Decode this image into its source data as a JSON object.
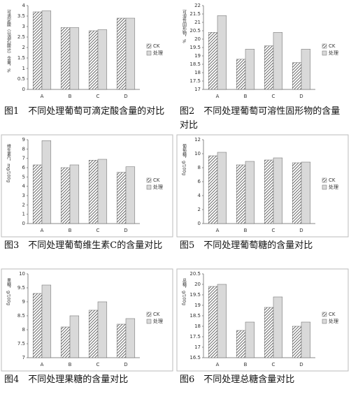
{
  "chart_data": [
    {
      "type": "bar",
      "caption": "图1　不同处理葡萄可滴定酸含量的对比",
      "y_label": "可滴定酸（以酒石酸计）含量，%",
      "categories": [
        "A",
        "B",
        "C",
        "D"
      ],
      "series": [
        {
          "name": "CK",
          "color": "#444444",
          "hatch": true,
          "values": [
            3.7,
            2.95,
            2.8,
            3.4
          ]
        },
        {
          "name": "处理",
          "color": "#d9d9d9",
          "hatch": false,
          "values": [
            3.75,
            2.95,
            2.85,
            3.4
          ]
        }
      ],
      "ylim": [
        0,
        4
      ],
      "yticks": [
        0,
        0.5,
        1,
        1.5,
        2,
        2.5,
        3,
        3.5,
        4
      ]
    },
    {
      "type": "bar",
      "caption": "图2　不同处理葡萄可溶性固形物的含量对比",
      "y_label": "可溶性固形物，%",
      "categories": [
        "A",
        "B",
        "C",
        "D"
      ],
      "series": [
        {
          "name": "CK",
          "color": "#444444",
          "hatch": true,
          "values": [
            20.4,
            18.8,
            19.6,
            18.6
          ]
        },
        {
          "name": "处理",
          "color": "#d9d9d9",
          "hatch": false,
          "values": [
            21.4,
            19.4,
            20.4,
            19.4
          ]
        }
      ],
      "ylim": [
        17,
        22
      ],
      "yticks": [
        17,
        17.5,
        18,
        18.5,
        19,
        19.5,
        20,
        20.5,
        21,
        21.5,
        22
      ]
    },
    {
      "type": "bar",
      "caption": "图3　不同处理葡萄维生素C的含量对比",
      "y_label": "维生素C，mg/100g",
      "categories": [
        "A",
        "B",
        "C",
        "D"
      ],
      "series": [
        {
          "name": "CK",
          "color": "#444444",
          "hatch": true,
          "values": [
            6.3,
            6.0,
            6.8,
            5.5
          ]
        },
        {
          "name": "处理",
          "color": "#d9d9d9",
          "hatch": false,
          "values": [
            8.9,
            6.3,
            6.9,
            6.1
          ]
        }
      ],
      "ylim": [
        0,
        9
      ],
      "yticks": [
        0,
        1,
        2,
        3,
        4,
        5,
        6,
        7,
        8,
        9
      ]
    },
    {
      "type": "bar",
      "caption": "图5　不同处理葡萄糖的含量对比",
      "y_label": "葡萄糖，g/100g",
      "categories": [
        "A",
        "B",
        "C",
        "D"
      ],
      "series": [
        {
          "name": "CK",
          "color": "#444444",
          "hatch": true,
          "values": [
            9.7,
            8.4,
            9.1,
            8.7
          ]
        },
        {
          "name": "处理",
          "color": "#d9d9d9",
          "hatch": false,
          "values": [
            10.2,
            8.9,
            9.4,
            8.8
          ]
        }
      ],
      "ylim": [
        0,
        12
      ],
      "yticks": [
        0,
        2,
        4,
        6,
        8,
        10,
        12
      ]
    },
    {
      "type": "bar",
      "caption": "图4　不同处理果糖的含量对比",
      "y_label": "果糖，g/100g",
      "categories": [
        "A",
        "B",
        "C",
        "D"
      ],
      "series": [
        {
          "name": "CK",
          "color": "#444444",
          "hatch": true,
          "values": [
            9.3,
            8.1,
            8.7,
            8.2
          ]
        },
        {
          "name": "处理",
          "color": "#d9d9d9",
          "hatch": false,
          "values": [
            9.6,
            8.5,
            9.0,
            8.4
          ]
        }
      ],
      "ylim": [
        7,
        10
      ],
      "yticks": [
        7,
        7.5,
        8,
        8.5,
        9,
        9.5,
        10
      ]
    },
    {
      "type": "bar",
      "caption": "图6　不同处理总糖含量对比",
      "y_label": "总糖，g/100g",
      "categories": [
        "A",
        "B",
        "C",
        "D"
      ],
      "series": [
        {
          "name": "CK",
          "color": "#444444",
          "hatch": true,
          "values": [
            19.9,
            17.8,
            18.9,
            18.0
          ]
        },
        {
          "name": "处理",
          "color": "#d9d9d9",
          "hatch": false,
          "values": [
            20.0,
            18.2,
            19.4,
            18.2
          ]
        }
      ],
      "ylim": [
        16.5,
        20.5
      ],
      "yticks": [
        16.5,
        17,
        17.5,
        18,
        18.5,
        19,
        19.5,
        20,
        20.5
      ]
    }
  ]
}
